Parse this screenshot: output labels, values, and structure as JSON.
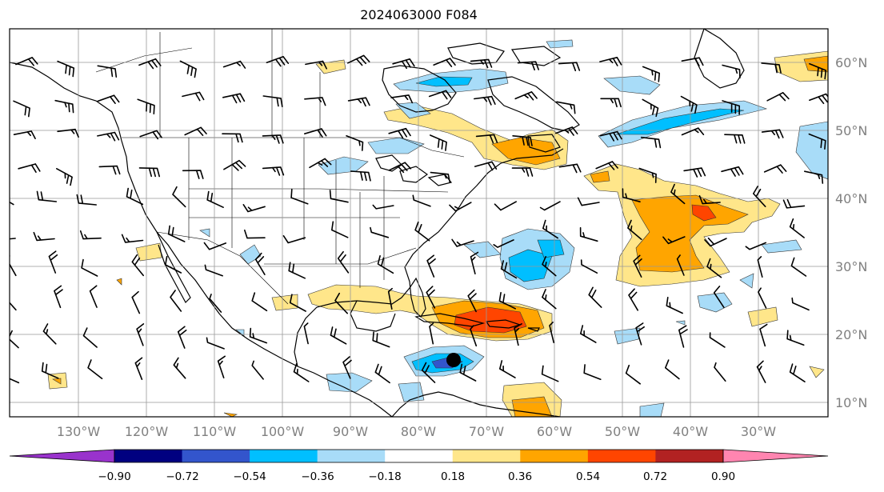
{
  "title": "2024063000 F084",
  "lon_labels": [
    "130°W",
    "120°W",
    "110°W",
    "100°W",
    "90°W",
    "80°W",
    "70°W",
    "60°W",
    "50°W",
    "40°W",
    "30°W"
  ],
  "lat_labels": [
    "60°N",
    "50°N",
    "40°N",
    "30°N",
    "20°N",
    "10°N"
  ],
  "colorbar": {
    "ticks": [
      "−0.90",
      "−0.72",
      "−0.54",
      "−0.36",
      "−0.18",
      "0.18",
      "0.36",
      "0.54",
      "0.72",
      "0.90"
    ],
    "colors": [
      "#9933cc",
      "#000080",
      "#3355cc",
      "#00bfff",
      "#a8dcf8",
      "#ffffff",
      "#ffe68a",
      "#ffa500",
      "#ff4500",
      "#b22222",
      "#ff85b0"
    ]
  },
  "fill_colors": {
    "light_blue": "#a8dcf8",
    "blue": "#00bfff",
    "mid_blue": "#3355cc",
    "yellow": "#ffe68a",
    "orange": "#ffa500",
    "red_orange": "#ff4500"
  },
  "marker": {
    "name": "storm-center",
    "lat": 16.5,
    "lon": -74.5
  }
}
